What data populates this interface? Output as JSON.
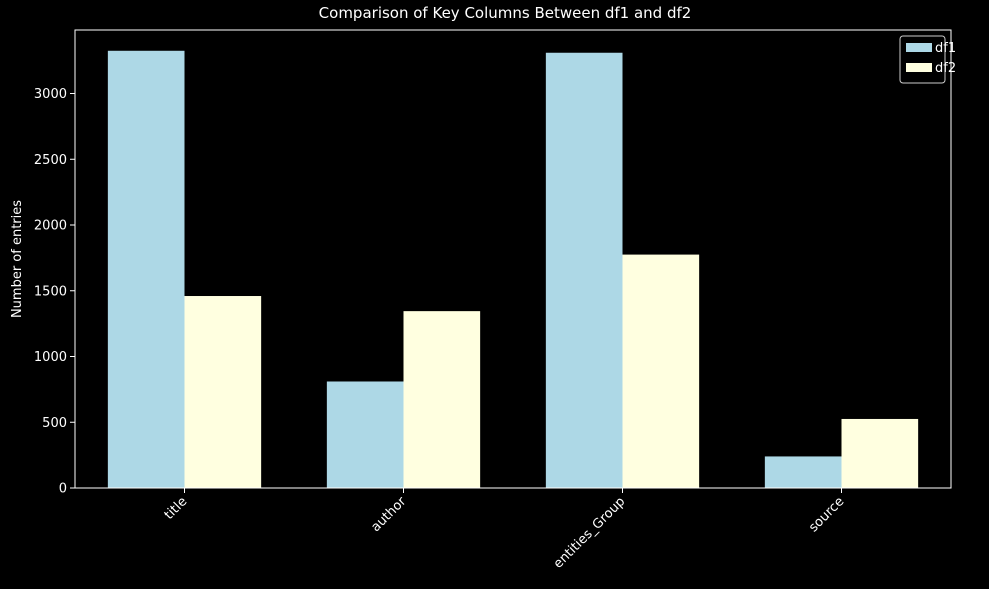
{
  "chart_data": {
    "type": "bar",
    "title": "Comparison of Key Columns Between df1 and df2",
    "xlabel": "",
    "ylabel": "Number of entries",
    "categories": [
      "title",
      "author",
      "entities_Group",
      "source"
    ],
    "series": [
      {
        "name": "df1",
        "values": [
          3325,
          810,
          3310,
          240
        ],
        "color": "#add8e6"
      },
      {
        "name": "df2",
        "values": [
          1460,
          1345,
          1775,
          525
        ],
        "color": "#ffffe0"
      }
    ],
    "ylim": [
      0,
      3483
    ],
    "yticks": [
      0,
      500,
      1000,
      1500,
      2000,
      2500,
      3000
    ],
    "grid": false,
    "legend_position": "top-right",
    "background_color": "#000000",
    "axis_color": "#ffffff",
    "text_color": "#ffffff"
  }
}
